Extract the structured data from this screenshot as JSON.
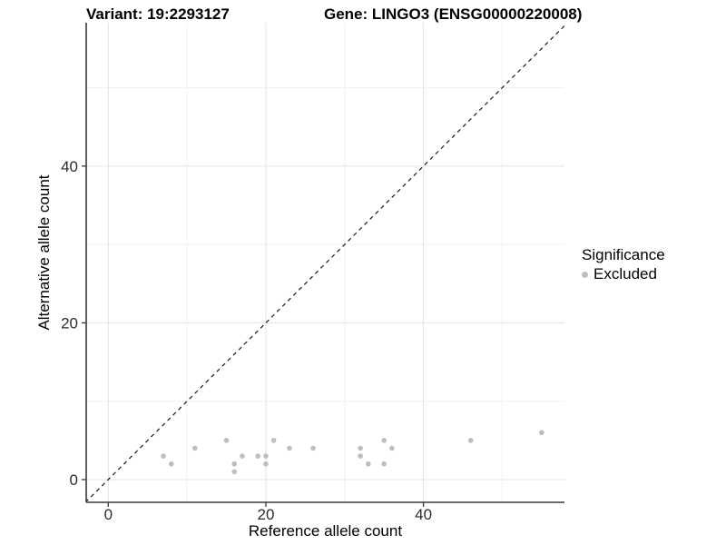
{
  "titles": {
    "variant": "Variant: 19:2293127",
    "gene": "Gene: LINGO3 (ENSG00000220008)"
  },
  "axes": {
    "x": {
      "label": "Reference allele count",
      "ticks": [
        0,
        20,
        40
      ],
      "minor_ticks": [
        10,
        30,
        50
      ]
    },
    "y": {
      "label": "Alternative allele count",
      "ticks": [
        0,
        20,
        40
      ],
      "minor_ticks": [
        10,
        30,
        50
      ]
    }
  },
  "legend": {
    "title": "Significance",
    "items": [
      {
        "label": "Excluded",
        "color": "#bebebe"
      }
    ]
  },
  "chart_data": {
    "type": "scatter",
    "title": "Variant: 19:2293127 | Gene: LINGO3 (ENSG00000220008)",
    "xlabel": "Reference allele count",
    "ylabel": "Alternative allele count",
    "xlim": [
      -2.8,
      57.9
    ],
    "ylim": [
      -2.9,
      58.3
    ],
    "grid": true,
    "legend_position": "right",
    "reference_line": {
      "type": "identity",
      "style": "dashed",
      "slope": 1,
      "intercept": 0
    },
    "series": [
      {
        "name": "Excluded",
        "color": "#bebebe",
        "points": [
          [
            7,
            3
          ],
          [
            8,
            2
          ],
          [
            11,
            4
          ],
          [
            15,
            5
          ],
          [
            16,
            1
          ],
          [
            16,
            2
          ],
          [
            17,
            3
          ],
          [
            19,
            3
          ],
          [
            20,
            2
          ],
          [
            20,
            3
          ],
          [
            21,
            5
          ],
          [
            23,
            4
          ],
          [
            26,
            4
          ],
          [
            32,
            3
          ],
          [
            32,
            4
          ],
          [
            33,
            2
          ],
          [
            35,
            2
          ],
          [
            35,
            5
          ],
          [
            36,
            4
          ],
          [
            46,
            5
          ],
          [
            55,
            6
          ]
        ]
      }
    ]
  },
  "colors": {
    "background": "#ffffff",
    "point": "#bebebe",
    "grid_major": "#e3e3e3",
    "grid_minor": "#f0f0f0",
    "axis_line": "#383838",
    "tick_text": "#2b2b2b",
    "ref_line": "#1a1a1a"
  }
}
